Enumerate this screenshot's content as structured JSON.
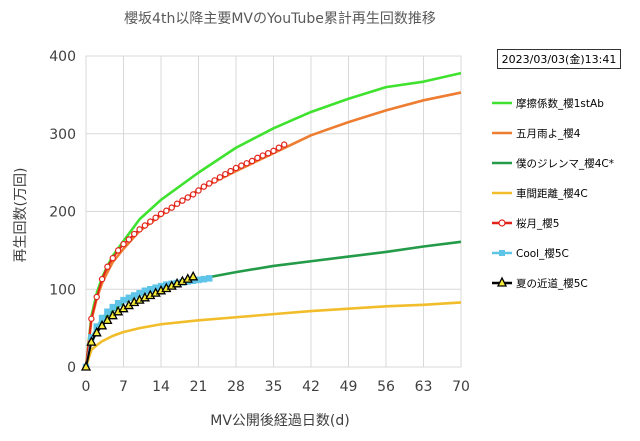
{
  "title": "櫻坂4th以降主要MVのYouTube累計再生回数推移",
  "timestamp": "2023/03/03(金)13:41",
  "chart_data": {
    "type": "line",
    "title": "櫻坂4th以降主要MVのYouTube累計再生回数推移",
    "xlabel": "MV公開後経過日数(d)",
    "ylabel": "再生回数(万回)",
    "xlim": [
      0,
      70
    ],
    "ylim": [
      0,
      400
    ],
    "xticks": [
      0,
      7,
      14,
      21,
      28,
      35,
      42,
      49,
      56,
      63,
      70
    ],
    "yticks": [
      0,
      100,
      200,
      300,
      400
    ],
    "grid": true,
    "legend_position": "right",
    "series": [
      {
        "name": "摩擦係数_櫻1stAb",
        "color": "#3fe22e",
        "marker": "none",
        "x": [
          0,
          1,
          2,
          3,
          4,
          5,
          7,
          10,
          14,
          21,
          28,
          35,
          42,
          49,
          56,
          63,
          70
        ],
        "y": [
          0,
          65,
          95,
          115,
          130,
          143,
          162,
          190,
          215,
          250,
          282,
          307,
          328,
          345,
          360,
          367,
          378
        ]
      },
      {
        "name": "五月雨よ_櫻4",
        "color": "#ed7d31",
        "marker": "none",
        "x": [
          0,
          1,
          2,
          3,
          4,
          5,
          7,
          10,
          14,
          21,
          28,
          35,
          42,
          49,
          56,
          63,
          70
        ],
        "y": [
          0,
          60,
          88,
          108,
          122,
          135,
          152,
          175,
          195,
          228,
          252,
          275,
          298,
          315,
          330,
          343,
          353
        ]
      },
      {
        "name": "僕のジレンマ_櫻4C*",
        "color": "#239b48",
        "marker": "none",
        "x": [
          0,
          1,
          2,
          3,
          5,
          7,
          10,
          14,
          21,
          28,
          35,
          42,
          49,
          56,
          63,
          70
        ],
        "y": [
          0,
          35,
          50,
          60,
          72,
          83,
          93,
          103,
          113,
          122,
          130,
          136,
          142,
          148,
          155,
          161
        ]
      },
      {
        "name": "車間距離_櫻4C",
        "color": "#f2bd2a",
        "marker": "none",
        "x": [
          0,
          1,
          2,
          3,
          5,
          7,
          10,
          14,
          21,
          28,
          35,
          42,
          49,
          56,
          63,
          70
        ],
        "y": [
          0,
          22,
          28,
          33,
          40,
          45,
          50,
          55,
          60,
          64,
          68,
          72,
          75,
          78,
          80,
          83
        ]
      },
      {
        "name": "桜月_櫻5",
        "color": "#e2231a",
        "marker": "circle",
        "x": [
          0,
          1,
          2,
          3,
          4,
          5,
          6,
          7,
          8,
          9,
          10,
          11,
          12,
          13,
          14,
          15,
          16,
          17,
          18,
          19,
          20,
          21,
          22,
          23,
          24,
          25,
          26,
          27,
          28,
          29,
          30,
          31,
          32,
          33,
          34,
          35,
          36,
          37
        ],
        "y": [
          0,
          62,
          90,
          113,
          129,
          140,
          150,
          158,
          164,
          171,
          177,
          182,
          187,
          192,
          197,
          201,
          205,
          210,
          214,
          218,
          222,
          227,
          232,
          236,
          240,
          244,
          248,
          252,
          256,
          259,
          262,
          265,
          269,
          272,
          275,
          278,
          282,
          286
        ]
      },
      {
        "name": "Cool_櫻5C",
        "color": "#5ec5e8",
        "marker": "square",
        "x": [
          0,
          1,
          2,
          3,
          4,
          5,
          6,
          7,
          8,
          9,
          10,
          11,
          12,
          13,
          14,
          15,
          16,
          17,
          18,
          19,
          20,
          21,
          22,
          23
        ],
        "y": [
          0,
          38,
          52,
          63,
          71,
          77,
          82,
          86,
          89,
          92,
          95,
          98,
          100,
          102,
          104,
          106,
          107,
          108,
          109,
          110,
          111,
          112,
          113,
          114
        ]
      },
      {
        "name": "夏の近道_櫻5C",
        "color": "#000000",
        "marker": "triangle",
        "x": [
          0,
          1,
          2,
          3,
          4,
          5,
          6,
          7,
          8,
          9,
          10,
          11,
          12,
          13,
          14,
          15,
          16,
          17,
          18,
          19,
          20
        ],
        "y": [
          0,
          32,
          44,
          53,
          60,
          66,
          71,
          75,
          79,
          83,
          86,
          89,
          92,
          95,
          98,
          101,
          104,
          107,
          110,
          113,
          116
        ]
      }
    ]
  }
}
